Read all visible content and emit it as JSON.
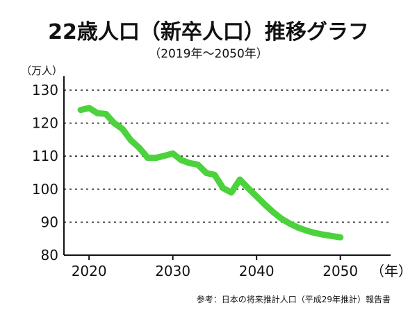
{
  "chart_data": {
    "type": "line",
    "title": "22歳人口（新卒人口）推移グラフ",
    "subtitle": "（2019年～2050年）",
    "ylabel": "（万人）",
    "xlabel_unit": "（年）",
    "source": "参考：日本の将来推計人口（平成29年推計）報告書",
    "ylim": [
      80,
      130
    ],
    "xlim": [
      2017,
      2056
    ],
    "yticks": [
      80,
      90,
      100,
      110,
      120,
      130
    ],
    "xticks": [
      2020,
      2030,
      2040,
      2050
    ],
    "grid": "horizontal-dotted",
    "series": [
      {
        "color": "#4cd23c",
        "x": [
          2019,
          2020,
          2021,
          2022,
          2023,
          2024,
          2025,
          2026,
          2027,
          2028,
          2029,
          2030,
          2031,
          2032,
          2033,
          2034,
          2035,
          2036,
          2037,
          2038,
          2039,
          2040,
          2041,
          2042,
          2043,
          2044,
          2045,
          2046,
          2047,
          2048,
          2049,
          2050
        ],
        "values": [
          124.0,
          124.6,
          123.0,
          122.8,
          120.0,
          118.2,
          114.8,
          112.5,
          109.5,
          109.5,
          110.1,
          110.8,
          108.8,
          107.9,
          107.4,
          104.9,
          104.3,
          100.3,
          99.0,
          102.9,
          100.3,
          97.8,
          95.3,
          93.0,
          91.0,
          89.5,
          88.3,
          87.4,
          86.7,
          86.2,
          85.8,
          85.4
        ]
      }
    ]
  }
}
